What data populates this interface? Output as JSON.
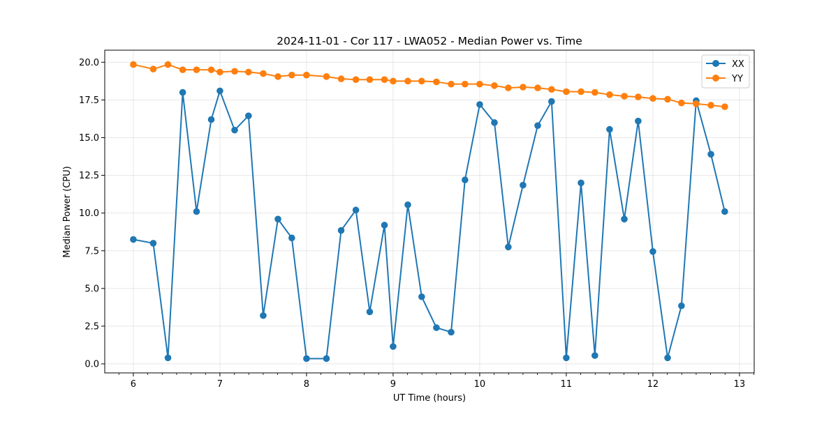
{
  "chart_data": {
    "type": "line",
    "title": "2024-11-01 - Cor 117 - LWA052 - Median Power vs. Time",
    "xlabel": "UT Time (hours)",
    "ylabel": "Median Power (CPU)",
    "xlim": [
      5.67,
      13.17
    ],
    "ylim": [
      -0.6,
      20.8
    ],
    "xticks": [
      6,
      7,
      8,
      9,
      10,
      11,
      12,
      13
    ],
    "xtick_labels": [
      "6",
      "7",
      "8",
      "9",
      "10",
      "11",
      "12",
      "13"
    ],
    "yticks": [
      0.0,
      2.5,
      5.0,
      7.5,
      10.0,
      12.5,
      15.0,
      17.5,
      20.0
    ],
    "ytick_labels": [
      "0.0",
      "2.5",
      "5.0",
      "7.5",
      "10.0",
      "12.5",
      "15.0",
      "17.5",
      "20.0"
    ],
    "grid": true,
    "legend_position": "top-right",
    "x": [
      6.0,
      6.23,
      6.4,
      6.57,
      6.73,
      6.9,
      7.0,
      7.17,
      7.33,
      7.5,
      7.67,
      7.83,
      8.0,
      8.23,
      8.4,
      8.57,
      8.73,
      8.9,
      9.0,
      9.17,
      9.33,
      9.5,
      9.67,
      9.83,
      10.0,
      10.17,
      10.33,
      10.5,
      10.67,
      10.83,
      11.0,
      11.17,
      11.33,
      11.5,
      11.67,
      11.83,
      12.0,
      12.17,
      12.33,
      12.5,
      12.67,
      12.83
    ],
    "series": [
      {
        "name": "XX",
        "color": "#1f77b4",
        "values": [
          8.25,
          8.0,
          0.4,
          18.0,
          10.1,
          16.2,
          18.1,
          15.5,
          16.45,
          3.2,
          9.6,
          8.35,
          0.35,
          0.35,
          8.85,
          10.2,
          3.45,
          9.2,
          1.15,
          10.55,
          4.45,
          2.4,
          2.1,
          12.2,
          17.2,
          16.0,
          7.75,
          11.85,
          15.8,
          17.4,
          0.4,
          12.0,
          0.55,
          15.55,
          9.6,
          16.1,
          7.45,
          0.4,
          3.85,
          17.45,
          13.9,
          10.1
        ]
      },
      {
        "name": "YY",
        "color": "#ff7f0e",
        "values": [
          19.85,
          19.55,
          19.85,
          19.5,
          19.5,
          19.5,
          19.35,
          19.4,
          19.35,
          19.25,
          19.05,
          19.15,
          19.15,
          19.05,
          18.9,
          18.85,
          18.85,
          18.85,
          18.75,
          18.75,
          18.75,
          18.7,
          18.55,
          18.55,
          18.55,
          18.45,
          18.3,
          18.35,
          18.3,
          18.2,
          18.05,
          18.05,
          18.0,
          17.85,
          17.75,
          17.7,
          17.6,
          17.55,
          17.3,
          17.25,
          17.15,
          17.05
        ]
      }
    ]
  }
}
